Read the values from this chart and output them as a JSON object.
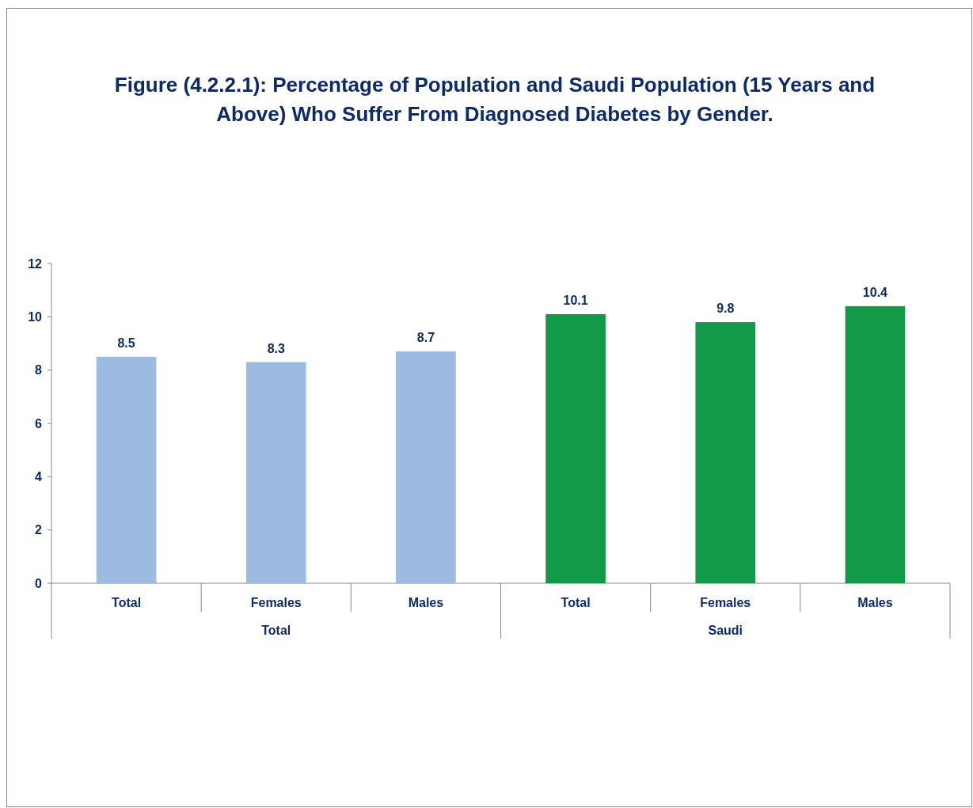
{
  "chart_data": {
    "type": "bar",
    "title": "Figure (4.2.2.1): Percentage of  Population and Saudi Population (15 Years and Above) Who Suffer From Diagnosed Diabetes by Gender.",
    "categories": [
      "Total",
      "Females",
      "Males",
      "Total",
      "Females",
      "Males"
    ],
    "values": [
      8.5,
      8.3,
      8.7,
      10.1,
      9.8,
      10.4
    ],
    "colors": [
      "#9dbbe0",
      "#9dbbe0",
      "#9dbbe0",
      "#129a48",
      "#129a48",
      "#129a48"
    ],
    "ylim": [
      0,
      12
    ],
    "yticks": [
      0,
      2,
      4,
      6,
      8,
      10,
      12
    ],
    "grid": false,
    "data_labels": true,
    "annotations": [
      "Total",
      "Saudi"
    ]
  }
}
